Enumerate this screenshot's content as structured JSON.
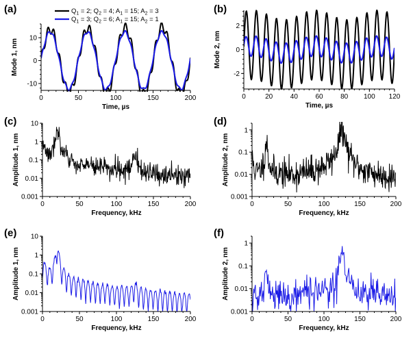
{
  "figure": {
    "panels": [
      {
        "key": "a",
        "label": "(a)"
      },
      {
        "key": "b",
        "label": "(b)"
      },
      {
        "key": "c",
        "label": "(c)"
      },
      {
        "key": "d",
        "label": "(d)"
      },
      {
        "key": "e",
        "label": "(e)"
      },
      {
        "key": "f",
        "label": "(f)"
      }
    ]
  },
  "colors": {
    "black_series": "#000000",
    "blue_series": "#1a1ae6"
  },
  "chart_data": [
    {
      "panel": "a",
      "type": "line",
      "xlabel": "Time, µs",
      "ylabel": "Mode 1, nm",
      "xlim": [
        0,
        200
      ],
      "ylim": [
        -13,
        16
      ],
      "xticks": [
        0,
        50,
        100,
        150,
        200
      ],
      "yticks": [
        -10,
        0,
        10
      ],
      "legend_position": "top",
      "series": [
        {
          "name": "Q1 = 2; Q2 = 4; A1 = 15; A2 = 3",
          "legend_parts": [
            [
              "Q",
              "1",
              " = 2; Q",
              "2",
              " = 4; A",
              "1",
              " = 15; A",
              "2",
              " = 3"
            ]
          ],
          "color": "black",
          "signal": {
            "amplitude": 13.5,
            "frequency_khz": 20,
            "phase": 0,
            "growth": 0.006,
            "mod_amplitude": 2,
            "mod_frequency_khz": 125
          }
        },
        {
          "name": "Q1 = 3; Q2 = 6; A1 = 15; A2 = 1",
          "legend_parts": [
            [
              "Q",
              "1",
              " = 3; Q",
              "2",
              " = 6; A",
              "1",
              " = 15; A",
              "2",
              " = 1"
            ]
          ],
          "color": "blue",
          "signal": {
            "amplitude": 12.5,
            "frequency_khz": 20,
            "phase": 0.05,
            "growth": 0,
            "mod_amplitude": 0.6,
            "mod_frequency_khz": 125
          }
        }
      ]
    },
    {
      "panel": "b",
      "type": "line",
      "xlabel": "Time, µs",
      "ylabel": "Mode 2, nm",
      "xlim": [
        0,
        120
      ],
      "ylim": [
        -3.3,
        3.3
      ],
      "xticks": [
        0,
        20,
        40,
        60,
        80,
        100,
        120
      ],
      "yticks": [
        -2,
        0,
        2
      ],
      "series": [
        {
          "name": "Q1 = 2; Q2 = 4; A1 = 15; A2 = 3",
          "color": "black",
          "signal": {
            "amplitude": 2.9,
            "frequency_khz": 125,
            "phase": 0,
            "growth": 0,
            "mod_amplitude": 0.4,
            "mod_frequency_khz": 20
          }
        },
        {
          "name": "Q1 = 3; Q2 = 6; A1 = 15; A2 = 1",
          "color": "blue",
          "signal": {
            "amplitude": 0.85,
            "frequency_khz": 125,
            "phase": 0.2,
            "growth": 0,
            "mod_amplitude": 0.3,
            "mod_frequency_khz": 20
          }
        }
      ]
    },
    {
      "panel": "c",
      "type": "line",
      "yscale": "log",
      "xlabel": "Frequency, kHz",
      "ylabel": "Amplitude 1, nm",
      "xlim": [
        0,
        200
      ],
      "ylim": [
        0.001,
        10
      ],
      "xticks": [
        0,
        50,
        100,
        150,
        200
      ],
      "yticks": [
        0.001,
        0.01,
        0.1,
        1,
        10
      ],
      "ytick_labels": [
        "0.001",
        "0.01",
        "0.1",
        "1",
        "10"
      ],
      "series": [
        {
          "name": "Q1 = 2; Q2 = 4; A1 = 15; A2 = 3",
          "color": "black",
          "spectrum": {
            "kind": "noisy",
            "seed": 3,
            "n": 400,
            "baseline": [
              [
                0,
                0.7
              ],
              [
                10,
                0.15
              ],
              [
                40,
                0.05
              ],
              [
                100,
                0.03
              ],
              [
                130,
                0.015
              ],
              [
                200,
                0.012
              ]
            ],
            "peaks": [
              {
                "x": 20,
                "height": 5,
                "width": 1.5
              },
              {
                "x": 125,
                "height": 0.2,
                "width": 2
              }
            ],
            "noise": 0.45
          }
        }
      ]
    },
    {
      "panel": "d",
      "type": "line",
      "yscale": "log",
      "xlabel": "Frequency, kHz",
      "ylabel": "Amplitude 2, nm",
      "xlim": [
        0,
        200
      ],
      "ylim": [
        0.001,
        2
      ],
      "xticks": [
        0,
        50,
        100,
        150,
        200
      ],
      "yticks": [
        0.001,
        0.01,
        0.1,
        1
      ],
      "ytick_labels": [
        "0.001",
        "0.01",
        "0.1",
        "1"
      ],
      "series": [
        {
          "name": "Q1 = 2; Q2 = 4; A1 = 15; A2 = 3",
          "color": "black",
          "spectrum": {
            "kind": "noisy",
            "seed": 11,
            "n": 400,
            "baseline": [
              [
                0,
                0.05
              ],
              [
                5,
                0.01
              ],
              [
                60,
                0.008
              ],
              [
                100,
                0.012
              ],
              [
                150,
                0.008
              ],
              [
                200,
                0.006
              ]
            ],
            "peaks": [
              {
                "x": 125,
                "height": 1.2,
                "width": 2.5
              },
              {
                "x": 20,
                "height": 0.3,
                "width": 1.2
              }
            ],
            "noise": 0.55
          }
        }
      ]
    },
    {
      "panel": "e",
      "type": "line",
      "yscale": "log",
      "xlabel": "Frequency, kHz",
      "ylabel": "Amplitude 1, nm",
      "xlim": [
        0,
        200
      ],
      "ylim": [
        0.001,
        10
      ],
      "xticks": [
        0,
        50,
        100,
        150,
        200
      ],
      "yticks": [
        0.001,
        0.01,
        0.1,
        1,
        10
      ],
      "ytick_labels": [
        "0.001",
        "0.01",
        "0.1",
        "1",
        "10"
      ],
      "series": [
        {
          "name": "Q1 = 3; Q2 = 6; A1 = 15; A2 = 1",
          "color": "blue",
          "spectrum": {
            "kind": "comb",
            "seed": 7,
            "n": 400,
            "baseline": [
              [
                0,
                0.6
              ],
              [
                10,
                0.12
              ],
              [
                40,
                0.05
              ],
              [
                100,
                0.02
              ],
              [
                200,
                0.008
              ]
            ],
            "peaks": [
              {
                "x": 20,
                "height": 4.5,
                "width": 1.5
              },
              {
                "x": 125,
                "height": 0.03,
                "width": 2
              }
            ],
            "comb_spacing": 6.5,
            "dip_depth": 0.08,
            "noise": 0.12
          }
        }
      ]
    },
    {
      "panel": "f",
      "type": "line",
      "yscale": "log",
      "xlabel": "Frequency, kHz",
      "ylabel": "Amplitude 2, nm",
      "xlim": [
        0,
        200
      ],
      "ylim": [
        0.001,
        2
      ],
      "xticks": [
        0,
        50,
        100,
        150,
        200
      ],
      "yticks": [
        0.001,
        0.01,
        0.1,
        1
      ],
      "ytick_labels": [
        "0.001",
        "0.01",
        "0.1",
        "1"
      ],
      "series": [
        {
          "name": "Q1 = 3; Q2 = 6; A1 = 15; A2 = 1",
          "color": "blue",
          "spectrum": {
            "kind": "noisy",
            "seed": 21,
            "n": 260,
            "baseline": [
              [
                0,
                0.004
              ],
              [
                60,
                0.005
              ],
              [
                100,
                0.008
              ],
              [
                200,
                0.004
              ]
            ],
            "peaks": [
              {
                "x": 125,
                "height": 0.3,
                "width": 2
              },
              {
                "x": 20,
                "height": 0.05,
                "width": 1.2
              }
            ],
            "noise": 0.6
          }
        }
      ]
    }
  ]
}
